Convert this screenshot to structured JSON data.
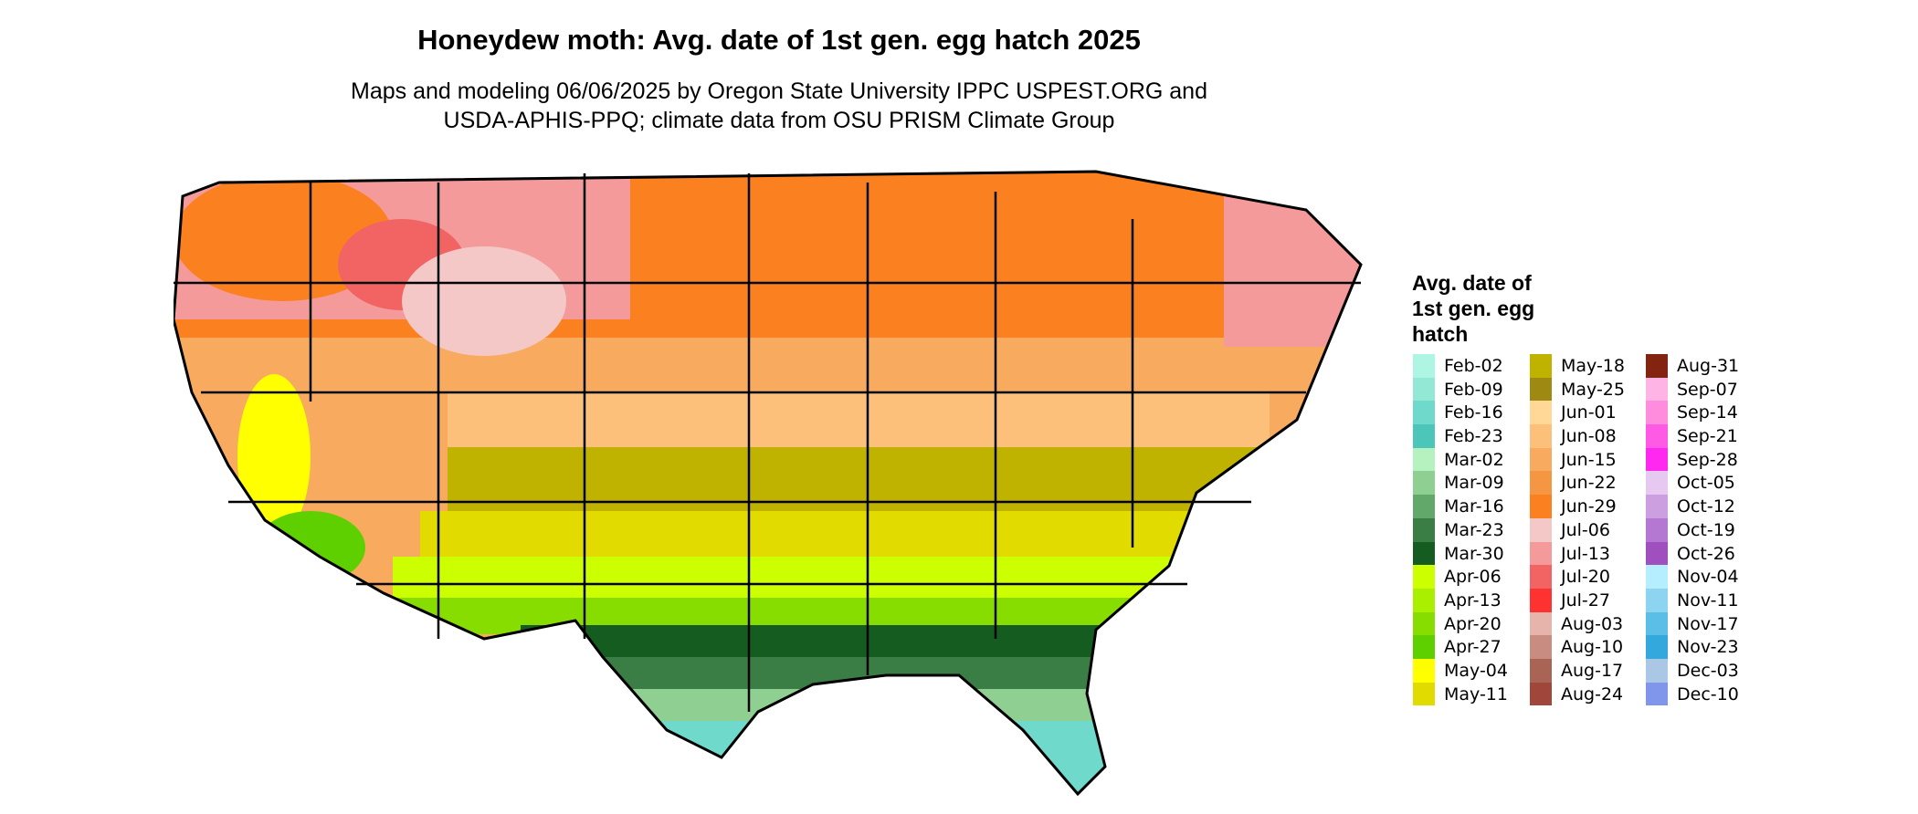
{
  "title": "Honeydew moth: Avg. date of 1st gen. egg hatch 2025",
  "subtitle_lines": [
    "Maps and modeling 06/06/2025 by Oregon State University IPPC USPEST.ORG and",
    "USDA-APHIS-PPQ; climate data from OSU PRISM Climate Group"
  ],
  "legend": {
    "title_lines": [
      "Avg. date of",
      "1st gen. egg",
      "hatch"
    ],
    "columns": [
      [
        {
          "label": "Feb-02",
          "color": "#aef5e3"
        },
        {
          "label": "Feb-09",
          "color": "#92e8d4"
        },
        {
          "label": "Feb-16",
          "color": "#6fdacb"
        },
        {
          "label": "Feb-23",
          "color": "#4cc6b9"
        },
        {
          "label": "Mar-02",
          "color": "#b5f2c0"
        },
        {
          "label": "Mar-09",
          "color": "#8fcf92"
        },
        {
          "label": "Mar-16",
          "color": "#62a86a"
        },
        {
          "label": "Mar-23",
          "color": "#3a7d45"
        },
        {
          "label": "Mar-30",
          "color": "#145c1f"
        },
        {
          "label": "Apr-06",
          "color": "#ccff00"
        },
        {
          "label": "Apr-13",
          "color": "#aaee00"
        },
        {
          "label": "Apr-20",
          "color": "#88dd00"
        },
        {
          "label": "Apr-27",
          "color": "#5ed000"
        },
        {
          "label": "May-04",
          "color": "#ffff00"
        },
        {
          "label": "May-11",
          "color": "#e2db00"
        }
      ],
      [
        {
          "label": "May-18",
          "color": "#bfb300"
        },
        {
          "label": "May-25",
          "color": "#9e8a12"
        },
        {
          "label": "Jun-01",
          "color": "#ffd796"
        },
        {
          "label": "Jun-08",
          "color": "#fcc07a"
        },
        {
          "label": "Jun-15",
          "color": "#f8aa5e"
        },
        {
          "label": "Jun-22",
          "color": "#f59642"
        },
        {
          "label": "Jun-29",
          "color": "#fa8020"
        },
        {
          "label": "Jul-06",
          "color": "#f5c8c8"
        },
        {
          "label": "Jul-13",
          "color": "#f59a9a"
        },
        {
          "label": "Jul-20",
          "color": "#f26464"
        },
        {
          "label": "Jul-27",
          "color": "#ff3232"
        },
        {
          "label": "Aug-03",
          "color": "#e6b4aa"
        },
        {
          "label": "Aug-10",
          "color": "#c88c80"
        },
        {
          "label": "Aug-17",
          "color": "#aa6456"
        },
        {
          "label": "Aug-24",
          "color": "#a0463a"
        }
      ],
      [
        {
          "label": "Aug-31",
          "color": "#822410"
        },
        {
          "label": "Sep-07",
          "color": "#ffb4e6"
        },
        {
          "label": "Sep-14",
          "color": "#ff8cdc"
        },
        {
          "label": "Sep-21",
          "color": "#ff5ae6"
        },
        {
          "label": "Sep-28",
          "color": "#ff28f0"
        },
        {
          "label": "Oct-05",
          "color": "#e6c8f0"
        },
        {
          "label": "Oct-12",
          "color": "#cca0e0"
        },
        {
          "label": "Oct-19",
          "color": "#b478d2"
        },
        {
          "label": "Oct-26",
          "color": "#a050be"
        },
        {
          "label": "Nov-04",
          "color": "#b4eeff"
        },
        {
          "label": "Nov-11",
          "color": "#8cd4f0"
        },
        {
          "label": "Nov-17",
          "color": "#5abee6"
        },
        {
          "label": "Nov-23",
          "color": "#32a8dc"
        },
        {
          "label": "Dec-03",
          "color": "#aac8e6"
        },
        {
          "label": "Dec-10",
          "color": "#8096ea"
        }
      ]
    ]
  }
}
